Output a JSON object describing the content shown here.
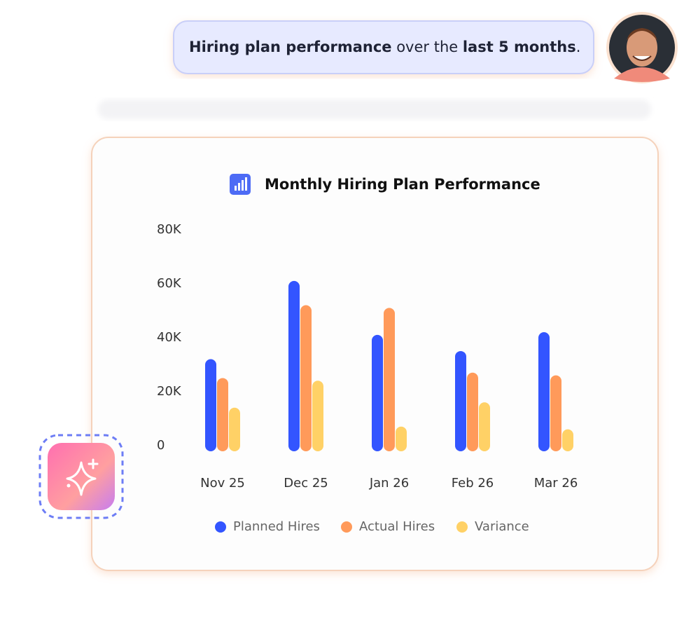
{
  "message": {
    "parts": [
      "Hiring plan performance",
      " over the ",
      "last 5 months",
      "."
    ]
  },
  "chart_data": {
    "type": "bar",
    "title": "Monthly Hiring Plan Performance",
    "categories": [
      "Nov 25",
      "Dec 25",
      "Jan 26",
      "Feb 26",
      "Mar 26"
    ],
    "series": [
      {
        "name": "Planned Hires",
        "color": "#3355ff",
        "values": [
          30000,
          59000,
          39000,
          33000,
          40000
        ]
      },
      {
        "name": "Actual Hires",
        "color": "#ff9a5a",
        "values": [
          23000,
          50000,
          49000,
          25000,
          24000
        ]
      },
      {
        "name": "Variance",
        "color": "#ffd166",
        "values": [
          12000,
          22000,
          5000,
          14000,
          4000
        ]
      }
    ],
    "ylim": [
      0,
      80000
    ],
    "yticks": [
      {
        "value": 0,
        "label": "0"
      },
      {
        "value": 20000,
        "label": "20K"
      },
      {
        "value": 40000,
        "label": "40K"
      },
      {
        "value": 60000,
        "label": "60K"
      },
      {
        "value": 80000,
        "label": "80K"
      }
    ],
    "grid": false,
    "legend": "bottom"
  }
}
